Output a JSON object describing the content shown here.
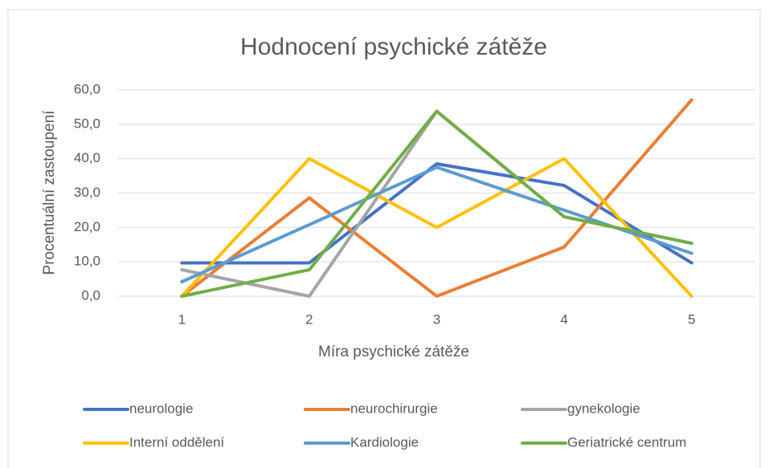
{
  "chart_data": {
    "type": "line",
    "title": "Hodnocení psychické zátěže",
    "x_label": "Míra psychické zátěže",
    "y_label": "Procentuální zastoupení",
    "categories": [
      "1",
      "2",
      "3",
      "4",
      "5"
    ],
    "series": [
      {
        "name": "neurologie",
        "color": "#4472c4",
        "values": [
          9.7,
          9.7,
          38.5,
          32.2,
          9.7
        ]
      },
      {
        "name": "neurochirurgie",
        "color": "#ed7d31",
        "values": [
          0,
          28.6,
          0,
          14.3,
          57.1
        ]
      },
      {
        "name": "gynekologie",
        "color": "#a5a5a5",
        "values": [
          7.7,
          0,
          53.8,
          23.1,
          15.4
        ]
      },
      {
        "name": "Interní oddělení",
        "color": "#ffc000",
        "values": [
          0,
          40,
          20,
          40,
          0
        ]
      },
      {
        "name": "Kardiologie",
        "color": "#5b9bd5",
        "values": [
          4.2,
          20.8,
          37.5,
          25.0,
          12.5
        ]
      },
      {
        "name": "Geriatrické centrum",
        "color": "#70ad47",
        "values": [
          0,
          7.7,
          53.8,
          23.1,
          15.4
        ]
      }
    ],
    "ylim": [
      0,
      60
    ],
    "yticks": [
      {
        "value": 0,
        "label": "0,0"
      },
      {
        "value": 10,
        "label": "10,0"
      },
      {
        "value": 20,
        "label": "20,0"
      },
      {
        "value": 30,
        "label": "30,0"
      },
      {
        "value": 40,
        "label": "40,0"
      },
      {
        "value": 50,
        "label": "50,0"
      },
      {
        "value": 60,
        "label": "60,0"
      }
    ],
    "grid": true,
    "legend": "bottom"
  }
}
